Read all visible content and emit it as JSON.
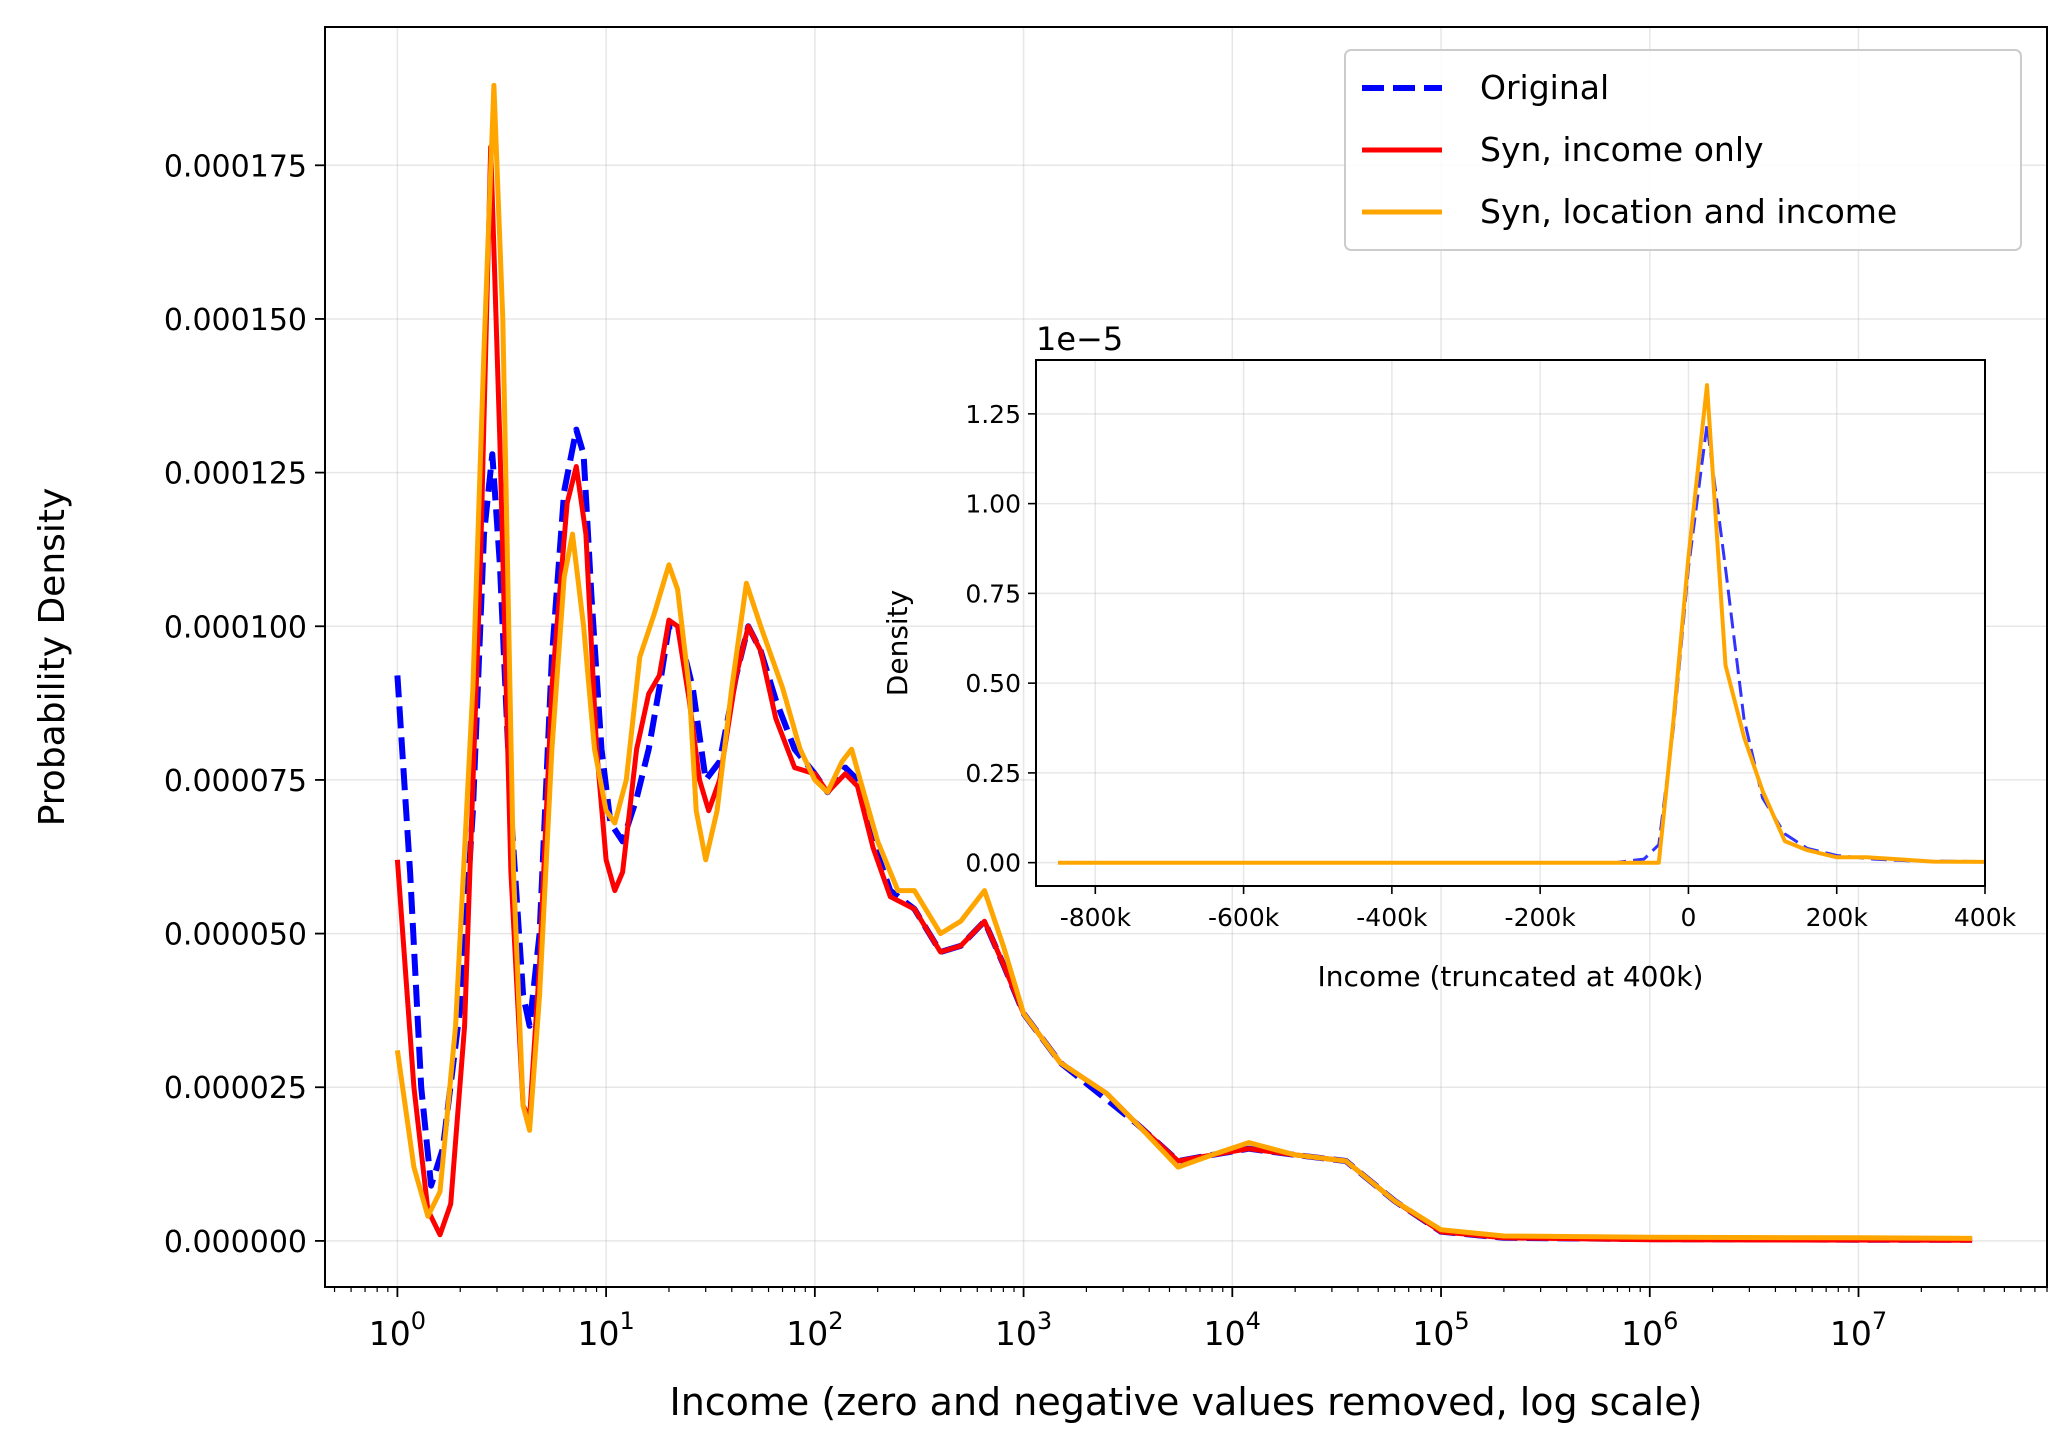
{
  "chart_data": [
    {
      "id": "main",
      "type": "line",
      "title": "",
      "xlabel": "Income (zero and negative values removed, log scale)",
      "ylabel": "Probability Density",
      "xscale": "log",
      "xlim": [
        0.45,
        80000000
      ],
      "ylim": [
        -7.5e-06,
        0.0001975
      ],
      "grid": true,
      "legend_position": "top-right",
      "xticks": [
        {
          "value": 1,
          "base": "10",
          "exp": "0"
        },
        {
          "value": 10,
          "base": "10",
          "exp": "1"
        },
        {
          "value": 100,
          "base": "10",
          "exp": "2"
        },
        {
          "value": 1000,
          "base": "10",
          "exp": "3"
        },
        {
          "value": 10000,
          "base": "10",
          "exp": "4"
        },
        {
          "value": 100000,
          "base": "10",
          "exp": "5"
        },
        {
          "value": 1000000,
          "base": "10",
          "exp": "6"
        },
        {
          "value": 10000000,
          "base": "10",
          "exp": "7"
        }
      ],
      "yticks": [
        {
          "value": 0,
          "label": "0.000000"
        },
        {
          "value": 2.5e-05,
          "label": "0.000025"
        },
        {
          "value": 5e-05,
          "label": "0.000050"
        },
        {
          "value": 7.5e-05,
          "label": "0.000075"
        },
        {
          "value": 0.0001,
          "label": "0.000100"
        },
        {
          "value": 0.000125,
          "label": "0.000125"
        },
        {
          "value": 0.00015,
          "label": "0.000150"
        },
        {
          "value": 0.000175,
          "label": "0.000175"
        }
      ],
      "series": [
        {
          "name": "Original",
          "color": "#0000ff",
          "style": "dashed",
          "points": [
            [
              1.0,
              9.2e-05
            ],
            [
              1.15,
              6e-05
            ],
            [
              1.3,
              2.5e-05
            ],
            [
              1.45,
              9e-06
            ],
            [
              1.65,
              1.5e-05
            ],
            [
              2.0,
              3.8e-05
            ],
            [
              2.3,
              7e-05
            ],
            [
              2.6,
              0.000115
            ],
            [
              2.85,
              0.000128
            ],
            [
              3.1,
              0.00011
            ],
            [
              3.5,
              7e-05
            ],
            [
              4.0,
              4e-05
            ],
            [
              4.3,
              3.5e-05
            ],
            [
              4.8,
              5e-05
            ],
            [
              5.5,
              9.5e-05
            ],
            [
              6.3,
              0.000122
            ],
            [
              7.2,
              0.000132
            ],
            [
              7.8,
              0.000128
            ],
            [
              8.5,
              0.000105
            ],
            [
              9.5,
              8e-05
            ],
            [
              10.5,
              6.8e-05
            ],
            [
              12.0,
              6.5e-05
            ],
            [
              14.0,
              7.2e-05
            ],
            [
              16.0,
              8e-05
            ],
            [
              18.0,
              9e-05
            ],
            [
              20.0,
              0.0001
            ],
            [
              22.0,
              0.0001
            ],
            [
              26.0,
              9e-05
            ],
            [
              30.0,
              7.5e-05
            ],
            [
              35.0,
              7.8e-05
            ],
            [
              42.0,
              9.2e-05
            ],
            [
              48.0,
              0.0001
            ],
            [
              55.0,
              9.6e-05
            ],
            [
              65.0,
              8.8e-05
            ],
            [
              80.0,
              8e-05
            ],
            [
              100.0,
              7.6e-05
            ],
            [
              115.0,
              7.3e-05
            ],
            [
              140.0,
              7.7e-05
            ],
            [
              160.0,
              7.5e-05
            ],
            [
              190.0,
              6.5e-05
            ],
            [
              230.0,
              5.7e-05
            ],
            [
              300.0,
              5.4e-05
            ],
            [
              400.0,
              4.7e-05
            ],
            [
              500.0,
              4.8e-05
            ],
            [
              650.0,
              5.2e-05
            ],
            [
              800.0,
              4.5e-05
            ],
            [
              1000.0,
              3.7e-05
            ],
            [
              1500.0,
              2.9e-05
            ],
            [
              2500.0,
              2.3e-05
            ],
            [
              3500.0,
              1.9e-05
            ],
            [
              5500.0,
              1.3e-05
            ],
            [
              8000.0,
              1.4e-05
            ],
            [
              12000.0,
              1.5e-05
            ],
            [
              20000.0,
              1.4e-05
            ],
            [
              35000.0,
              1.3e-05
            ],
            [
              60000.0,
              6.5e-06
            ],
            [
              100000.0,
              1.5e-06
            ],
            [
              200000.0,
              5e-07
            ],
            [
              1000000.0,
              3e-07
            ],
            [
              10000000.0,
              2e-07
            ],
            [
              35000000.0,
              2e-07
            ]
          ]
        },
        {
          "name": "Syn, income only",
          "color": "#ff0000",
          "style": "solid",
          "points": [
            [
              1.0,
              6.2e-05
            ],
            [
              1.2,
              2.5e-05
            ],
            [
              1.4,
              5e-06
            ],
            [
              1.6,
              1e-06
            ],
            [
              1.8,
              6e-06
            ],
            [
              2.1,
              3.5e-05
            ],
            [
              2.5,
              0.00011
            ],
            [
              2.8,
              0.000178
            ],
            [
              3.1,
              0.00013
            ],
            [
              3.5,
              6e-05
            ],
            [
              4.0,
              2.2e-05
            ],
            [
              4.3,
              2e-05
            ],
            [
              4.8,
              4.5e-05
            ],
            [
              5.5,
              9e-05
            ],
            [
              6.5,
              0.00012
            ],
            [
              7.2,
              0.000126
            ],
            [
              8.0,
              0.000115
            ],
            [
              9.0,
              8e-05
            ],
            [
              10.0,
              6.2e-05
            ],
            [
              11.0,
              5.7e-05
            ],
            [
              12.0,
              6e-05
            ],
            [
              14.0,
              8e-05
            ],
            [
              16.0,
              8.9e-05
            ],
            [
              18.0,
              9.2e-05
            ],
            [
              20.0,
              0.000101
            ],
            [
              22.0,
              0.0001
            ],
            [
              25.0,
              8.8e-05
            ],
            [
              28.0,
              7.5e-05
            ],
            [
              31.0,
              7e-05
            ],
            [
              35.0,
              7.5e-05
            ],
            [
              42.0,
              9.2e-05
            ],
            [
              48.0,
              0.0001
            ],
            [
              55.0,
              9.6e-05
            ],
            [
              65.0,
              8.5e-05
            ],
            [
              80.0,
              7.7e-05
            ],
            [
              100.0,
              7.6e-05
            ],
            [
              115.0,
              7.3e-05
            ],
            [
              140.0,
              7.6e-05
            ],
            [
              160.0,
              7.4e-05
            ],
            [
              190.0,
              6.4e-05
            ],
            [
              230.0,
              5.6e-05
            ],
            [
              300.0,
              5.4e-05
            ],
            [
              400.0,
              4.7e-05
            ],
            [
              500.0,
              4.8e-05
            ],
            [
              650.0,
              5.2e-05
            ],
            [
              800.0,
              4.5e-05
            ],
            [
              1000.0,
              3.7e-05
            ],
            [
              1500.0,
              2.9e-05
            ],
            [
              2500.0,
              2.4e-05
            ],
            [
              3500.0,
              1.9e-05
            ],
            [
              5500.0,
              1.3e-05
            ],
            [
              8000.0,
              1.4e-05
            ],
            [
              12000.0,
              1.5e-05
            ],
            [
              20000.0,
              1.4e-05
            ],
            [
              35000.0,
              1.3e-05
            ],
            [
              60000.0,
              6.5e-06
            ],
            [
              100000.0,
              1.5e-06
            ],
            [
              200000.0,
              5e-07
            ],
            [
              1000000.0,
              2e-07
            ],
            [
              35000000.0,
              1e-07
            ]
          ]
        },
        {
          "name": "Syn, location and income",
          "color": "#ffa500",
          "style": "solid",
          "points": [
            [
              1.0,
              3.1e-05
            ],
            [
              1.2,
              1.2e-05
            ],
            [
              1.4,
              4e-06
            ],
            [
              1.6,
              8e-06
            ],
            [
              1.9,
              3.5e-05
            ],
            [
              2.3,
              9e-05
            ],
            [
              2.6,
              0.000145
            ],
            [
              2.9,
              0.000188
            ],
            [
              3.2,
              0.00015
            ],
            [
              3.6,
              6e-05
            ],
            [
              4.0,
              2.2e-05
            ],
            [
              4.3,
              1.8e-05
            ],
            [
              4.8,
              4e-05
            ],
            [
              5.5,
              8e-05
            ],
            [
              6.3,
              0.000108
            ],
            [
              6.9,
              0.000115
            ],
            [
              7.8,
              0.0001
            ],
            [
              8.8,
              8e-05
            ],
            [
              10.0,
              7e-05
            ],
            [
              11.0,
              6.8e-05
            ],
            [
              12.5,
              7.5e-05
            ],
            [
              14.5,
              9.5e-05
            ],
            [
              17.0,
              0.000102
            ],
            [
              20.0,
              0.00011
            ],
            [
              22.0,
              0.000106
            ],
            [
              25.0,
              9e-05
            ],
            [
              27.0,
              7e-05
            ],
            [
              30.0,
              6.2e-05
            ],
            [
              34.0,
              7e-05
            ],
            [
              40.0,
              9e-05
            ],
            [
              47.0,
              0.000107
            ],
            [
              55.0,
              0.0001
            ],
            [
              70.0,
              9e-05
            ],
            [
              85.0,
              8e-05
            ],
            [
              100.0,
              7.5e-05
            ],
            [
              115.0,
              7.3e-05
            ],
            [
              135.0,
              7.8e-05
            ],
            [
              150.0,
              8e-05
            ],
            [
              165.0,
              7.5e-05
            ],
            [
              200.0,
              6.5e-05
            ],
            [
              250.0,
              5.7e-05
            ],
            [
              300.0,
              5.7e-05
            ],
            [
              400.0,
              5e-05
            ],
            [
              500.0,
              5.2e-05
            ],
            [
              650.0,
              5.7e-05
            ],
            [
              800.0,
              4.8e-05
            ],
            [
              1000.0,
              3.7e-05
            ],
            [
              1500.0,
              2.9e-05
            ],
            [
              2500.0,
              2.4e-05
            ],
            [
              3500.0,
              1.9e-05
            ],
            [
              5500.0,
              1.2e-05
            ],
            [
              8000.0,
              1.4e-05
            ],
            [
              12000.0,
              1.6e-05
            ],
            [
              20000.0,
              1.4e-05
            ],
            [
              35000.0,
              1.3e-05
            ],
            [
              60000.0,
              6.5e-06
            ],
            [
              100000.0,
              1.8e-06
            ],
            [
              200000.0,
              8e-07
            ],
            [
              1000000.0,
              6e-07
            ],
            [
              10000000.0,
              5e-07
            ],
            [
              35000000.0,
              4e-07
            ]
          ]
        }
      ]
    },
    {
      "id": "inset",
      "type": "line",
      "title": "",
      "xlabel": "Income (truncated at 400k)",
      "ylabel": "Density",
      "offset_text": "1e−5",
      "xlim": [
        -880000,
        400000
      ],
      "ylim": [
        -0.065,
        1.4
      ],
      "grid": true,
      "xticks": [
        {
          "value": -800000,
          "label": "-800k"
        },
        {
          "value": -600000,
          "label": "-600k"
        },
        {
          "value": -400000,
          "label": "-400k"
        },
        {
          "value": -200000,
          "label": "-200k"
        },
        {
          "value": 0,
          "label": "0"
        },
        {
          "value": 200000,
          "label": "200k"
        },
        {
          "value": 400000,
          "label": "400k"
        }
      ],
      "yticks": [
        {
          "value": 0,
          "label": "0.00"
        },
        {
          "value": 0.25,
          "label": "0.25"
        },
        {
          "value": 0.5,
          "label": "0.50"
        },
        {
          "value": 0.75,
          "label": "0.75"
        },
        {
          "value": 1.0,
          "label": "1.00"
        },
        {
          "value": 1.25,
          "label": "1.25"
        }
      ],
      "series": [
        {
          "name": "Original",
          "color": "#0000ff",
          "style": "dashed",
          "points": [
            [
              -850000,
              0.0
            ],
            [
              -100000,
              0.0
            ],
            [
              -60000,
              0.01
            ],
            [
              -40000,
              0.05
            ],
            [
              -20000,
              0.38
            ],
            [
              0,
              0.82
            ],
            [
              25000,
              1.22
            ],
            [
              50000,
              0.82
            ],
            [
              75000,
              0.4
            ],
            [
              100000,
              0.18
            ],
            [
              130000,
              0.08
            ],
            [
              160000,
              0.04
            ],
            [
              200000,
              0.02
            ],
            [
              250000,
              0.01
            ],
            [
              300000,
              0.005
            ],
            [
              400000,
              0.003
            ]
          ]
        },
        {
          "name": "Syn, location and income",
          "color": "#ffa500",
          "style": "solid",
          "points": [
            [
              -850000,
              0.0
            ],
            [
              -40000,
              0.0
            ],
            [
              -20000,
              0.4
            ],
            [
              0,
              0.85
            ],
            [
              25000,
              1.33
            ],
            [
              50000,
              0.55
            ],
            [
              75000,
              0.35
            ],
            [
              100000,
              0.2
            ],
            [
              130000,
              0.06
            ],
            [
              160000,
              0.035
            ],
            [
              200000,
              0.015
            ],
            [
              240000,
              0.015
            ],
            [
              280000,
              0.01
            ],
            [
              330000,
              0.003
            ],
            [
              400000,
              0.002
            ]
          ]
        }
      ]
    }
  ]
}
